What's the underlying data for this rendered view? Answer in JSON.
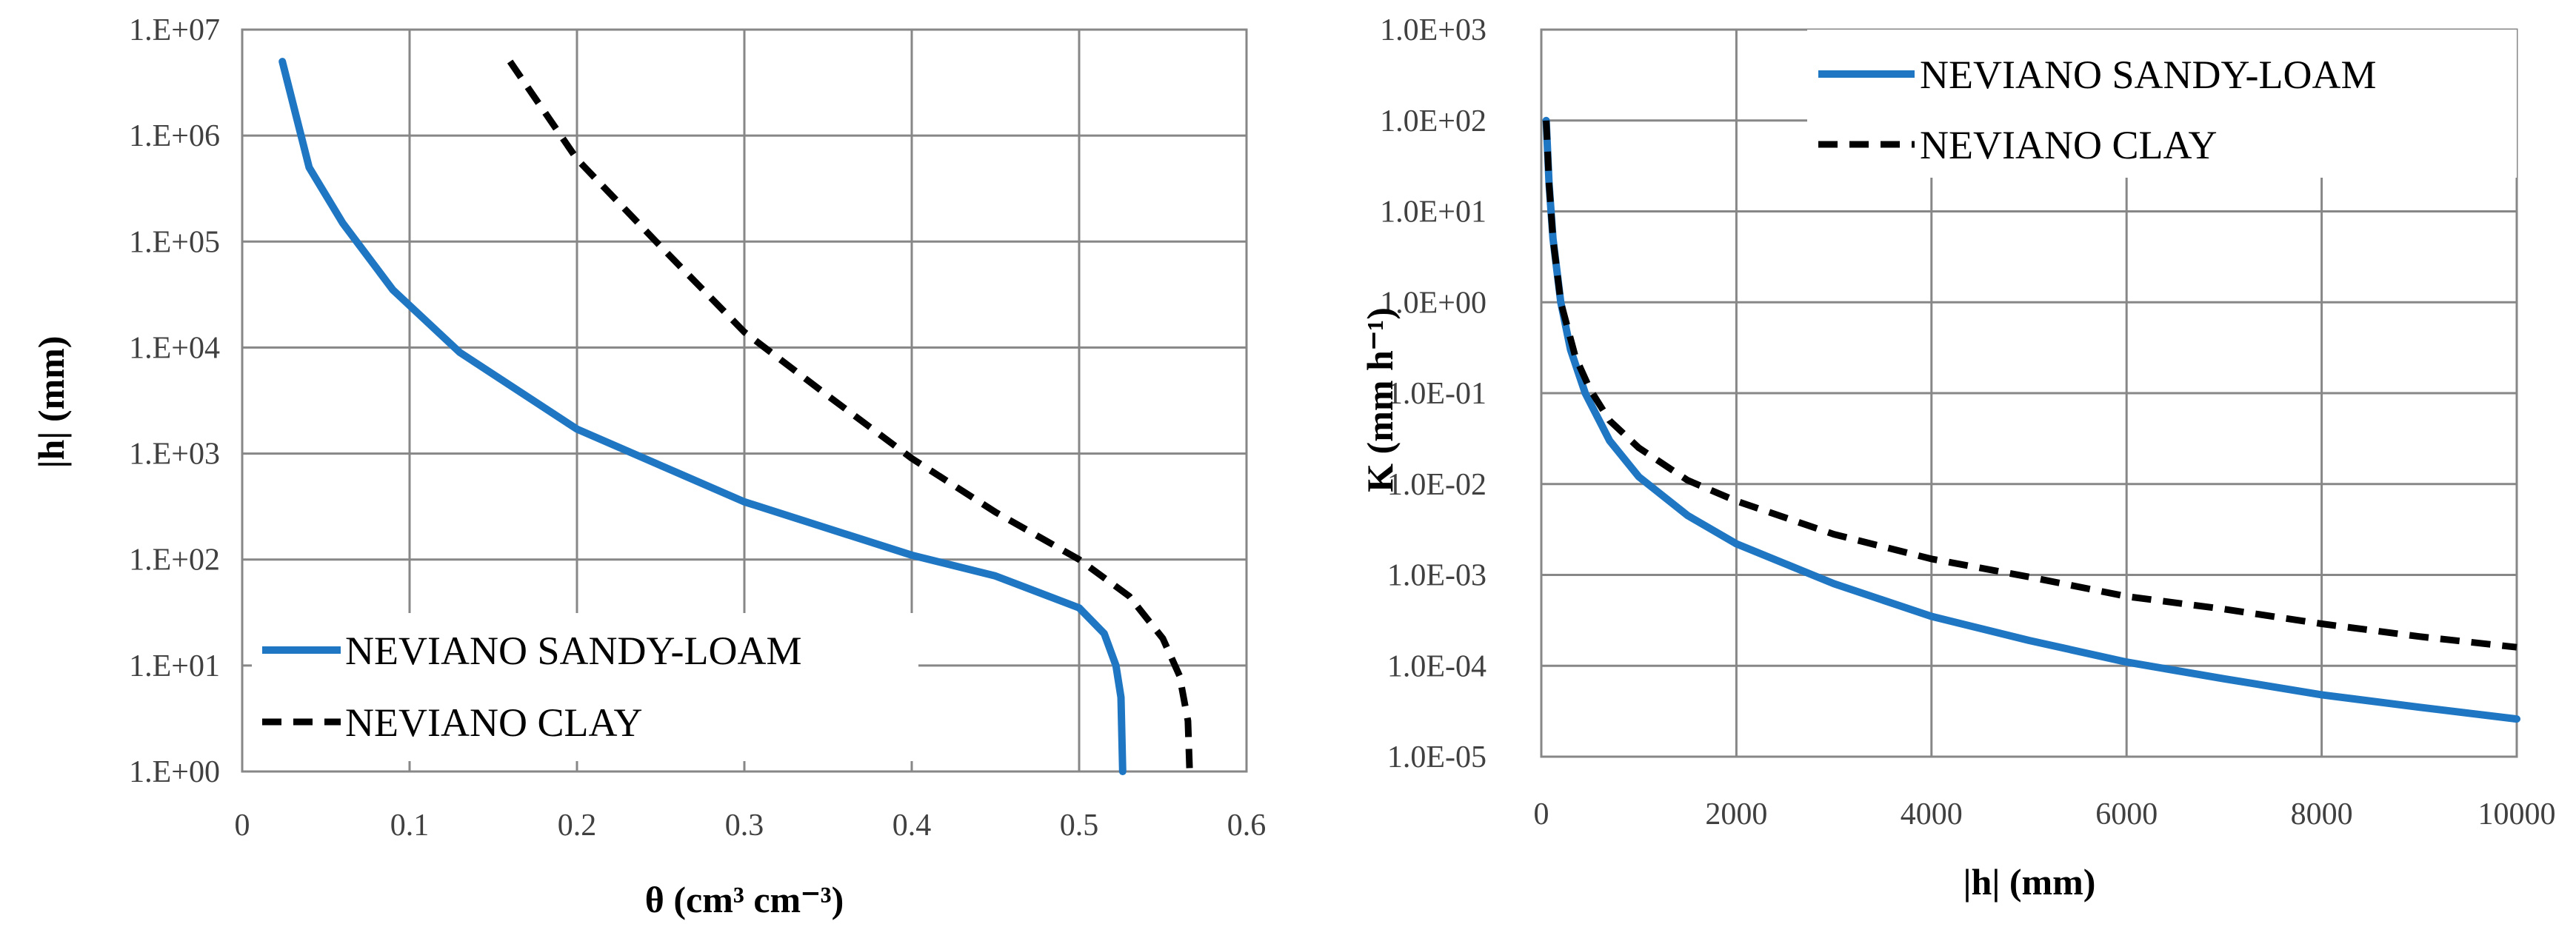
{
  "chart_data": [
    {
      "type": "line",
      "xlabel": "θ (cm³ cm⁻³)",
      "ylabel": "|h| (mm)",
      "yscale": "log",
      "xlim": [
        0,
        0.6
      ],
      "ylim": [
        1,
        10000000
      ],
      "xticks": [
        "0",
        "0.1",
        "0.2",
        "0.3",
        "0.4",
        "0.5",
        "0.6"
      ],
      "yticks": [
        "1.E+00",
        "1.E+01",
        "1.E+02",
        "1.E+03",
        "1.E+04",
        "1.E+05",
        "1.E+06",
        "1.E+07"
      ],
      "grid": true,
      "legend_position": "bottom-left",
      "series": [
        {
          "name": "NEVIANO SANDY-LOAM",
          "color": "#1F77C4",
          "dash": "solid",
          "points": [
            [
              0.024,
              5000000
            ],
            [
              0.04,
              500000
            ],
            [
              0.06,
              150000
            ],
            [
              0.09,
              35000
            ],
            [
              0.13,
              9000
            ],
            [
              0.2,
              1700
            ],
            [
              0.3,
              350
            ],
            [
              0.4,
              110
            ],
            [
              0.45,
              70
            ],
            [
              0.5,
              35
            ],
            [
              0.515,
              20
            ],
            [
              0.522,
              10
            ],
            [
              0.525,
              5
            ],
            [
              0.526,
              1
            ]
          ]
        },
        {
          "name": "NEVIANO CLAY",
          "color": "#000000",
          "dash": "dashed",
          "points": [
            [
              0.16,
              5000000
            ],
            [
              0.2,
              600000
            ],
            [
              0.25,
              90000
            ],
            [
              0.3,
              14000
            ],
            [
              0.35,
              3500
            ],
            [
              0.4,
              900
            ],
            [
              0.45,
              280
            ],
            [
              0.5,
              100
            ],
            [
              0.53,
              45
            ],
            [
              0.55,
              18
            ],
            [
              0.56,
              8
            ],
            [
              0.565,
              3
            ],
            [
              0.566,
              1
            ]
          ]
        }
      ]
    },
    {
      "type": "line",
      "xlabel": "|h| (mm)",
      "ylabel": "K (mm h⁻¹)",
      "yscale": "log",
      "xlim": [
        0,
        10000
      ],
      "ylim": [
        1e-05,
        1000
      ],
      "xticks": [
        "0",
        "2000",
        "4000",
        "6000",
        "8000",
        "10000"
      ],
      "yticks": [
        "1.0E-05",
        "1.0E-04",
        "1.0E-03",
        "1.0E-02",
        "1.0E-01",
        "1.0E+00",
        "1.0E+01",
        "1.0E+02",
        "1.0E+03"
      ],
      "grid": true,
      "legend_position": "top-right",
      "series": [
        {
          "name": "NEVIANO SANDY-LOAM",
          "color": "#1F77C4",
          "dash": "solid",
          "points": [
            [
              50,
              100
            ],
            [
              80,
              20
            ],
            [
              120,
              5
            ],
            [
              200,
              1
            ],
            [
              300,
              0.3
            ],
            [
              450,
              0.1
            ],
            [
              700,
              0.03
            ],
            [
              1000,
              0.012
            ],
            [
              1500,
              0.0045
            ],
            [
              2000,
              0.0022
            ],
            [
              3000,
              0.0008
            ],
            [
              4000,
              0.00035
            ],
            [
              5000,
              0.00019
            ],
            [
              6000,
              0.00011
            ],
            [
              7000,
              7.2e-05
            ],
            [
              8000,
              4.8e-05
            ],
            [
              9000,
              3.5e-05
            ],
            [
              10000,
              2.6e-05
            ]
          ]
        },
        {
          "name": "NEVIANO CLAY",
          "color": "#000000",
          "dash": "dashed",
          "points": [
            [
              50,
              100
            ],
            [
              80,
              20
            ],
            [
              120,
              5
            ],
            [
              200,
              1
            ],
            [
              350,
              0.25
            ],
            [
              500,
              0.11
            ],
            [
              700,
              0.05
            ],
            [
              1000,
              0.025
            ],
            [
              1500,
              0.011
            ],
            [
              2000,
              0.0065
            ],
            [
              3000,
              0.0028
            ],
            [
              4000,
              0.0015
            ],
            [
              5000,
              0.00095
            ],
            [
              6000,
              0.00058
            ],
            [
              7000,
              0.00042
            ],
            [
              8000,
              0.00029
            ],
            [
              9000,
              0.00021
            ],
            [
              10000,
              0.00016
            ]
          ]
        }
      ]
    }
  ]
}
